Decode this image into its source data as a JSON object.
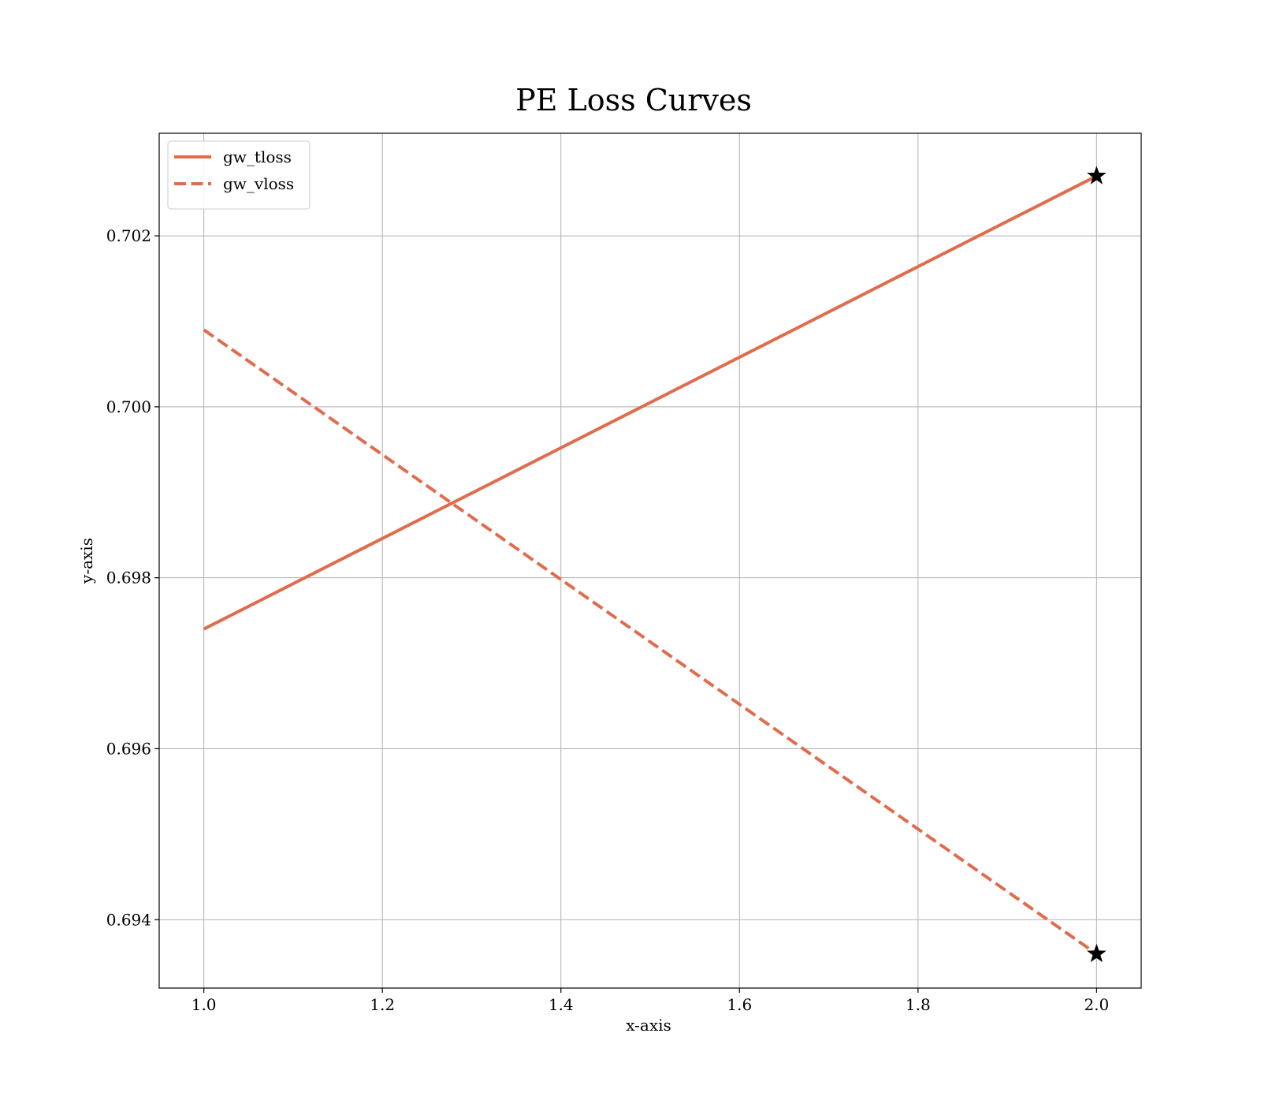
{
  "chart_data": {
    "type": "line",
    "title": "PE Loss Curves",
    "xlabel": "x-axis",
    "ylabel": "y-axis",
    "xlim": [
      0.95,
      2.05
    ],
    "ylim": [
      0.6932,
      0.7032
    ],
    "xticks": [
      1.0,
      1.2,
      1.4,
      1.6,
      1.8,
      2.0
    ],
    "xtick_labels": [
      "1.0",
      "1.2",
      "1.4",
      "1.6",
      "1.8",
      "2.0"
    ],
    "yticks": [
      0.694,
      0.696,
      0.698,
      0.7,
      0.702
    ],
    "ytick_labels": [
      "0.694",
      "0.696",
      "0.698",
      "0.700",
      "0.702"
    ],
    "grid": true,
    "legend_position": "top-left",
    "series": [
      {
        "name": "gw_tloss",
        "line_style": "solid",
        "color": "#e06c4e",
        "x": [
          1.0,
          2.0
        ],
        "y": [
          0.6974,
          0.7027
        ],
        "marker_at_last": "star"
      },
      {
        "name": "gw_vloss",
        "line_style": "dashed",
        "color": "#e06c4e",
        "x": [
          1.0,
          2.0
        ],
        "y": [
          0.7009,
          0.6936
        ],
        "marker_at_last": "star"
      }
    ]
  }
}
